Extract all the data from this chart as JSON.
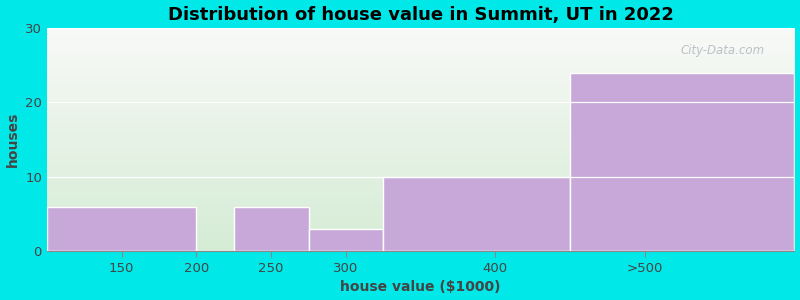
{
  "categories": [
    "150",
    "200",
    "250",
    "300",
    "400",
    ">500"
  ],
  "values": [
    6,
    0,
    6,
    3,
    10,
    24
  ],
  "bar_color": "#c8a8d8",
  "bar_edgecolor": "#c8a8d8",
  "title": "Distribution of house value in Summit, UT in 2022",
  "xlabel": "house value ($1000)",
  "ylabel": "houses",
  "ylim": [
    0,
    30
  ],
  "yticks": [
    0,
    10,
    20,
    30
  ],
  "background_color": "#00e8e8",
  "plot_bg_top": "#f8f8f4",
  "plot_bg_bottom": "#d4ecd4",
  "title_fontsize": 13,
  "axis_fontsize": 10,
  "tick_fontsize": 9.5,
  "watermark": "City-Data.com",
  "bin_edges": [
    100,
    200,
    225,
    275,
    325,
    450,
    600
  ],
  "tick_positions": [
    150,
    200,
    250,
    300,
    400,
    500
  ],
  "tick_labels": [
    "150",
    "200",
    "250",
    "300",
    "400",
    ">500"
  ]
}
